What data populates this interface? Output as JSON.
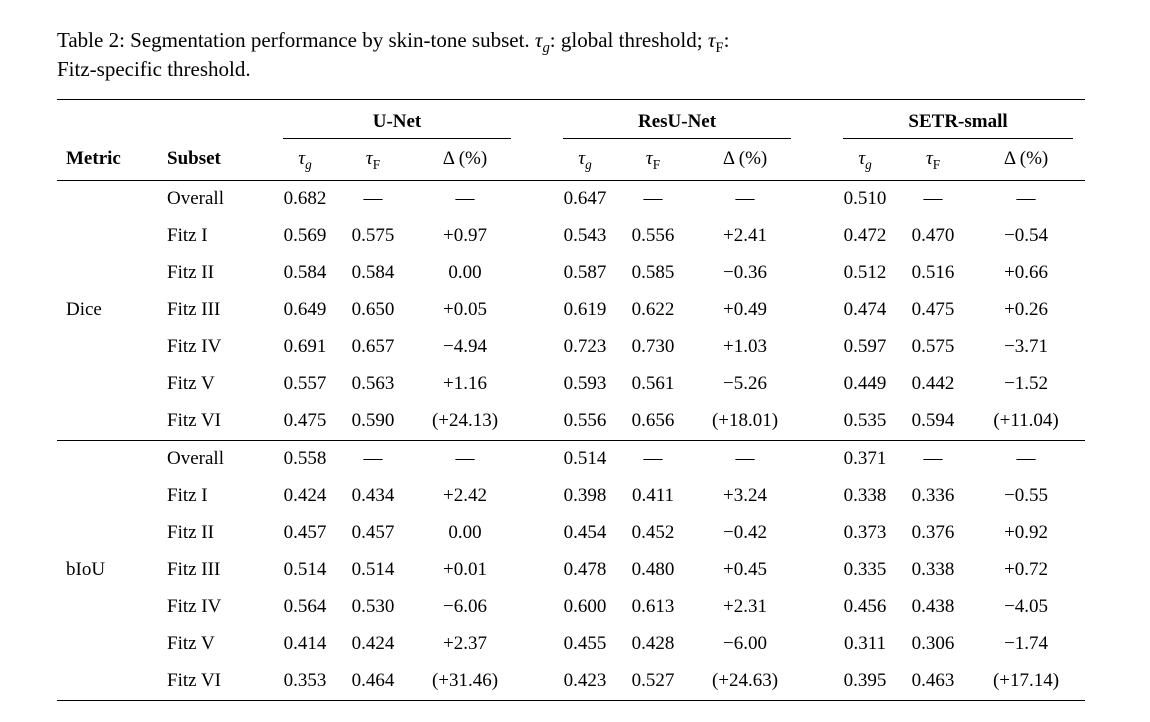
{
  "page": {
    "background": "#ffffff",
    "text_color": "#000000"
  },
  "caption": {
    "prefix": "Table 2: Segmentation performance by skin-tone subset. ",
    "tau1": {
      "base": "τ",
      "sub": "g"
    },
    "mid": ": global threshold; ",
    "tau2": {
      "base": "τ",
      "sub": "F"
    },
    "colon": ":",
    "line2": "Fitz-specific threshold."
  },
  "table": {
    "corner": {
      "metric": "Metric",
      "subset": "Subset"
    },
    "groups": [
      "U-Net",
      "ResU-Net",
      "SETR-small"
    ],
    "subheaders": {
      "tau_g": {
        "base": "τ",
        "sub": "g"
      },
      "tau_F": {
        "base": "τ",
        "sub": "F"
      },
      "delta": "Δ (%)"
    },
    "sections": [
      {
        "metric": "Dice",
        "rows": [
          {
            "subset": "Overall",
            "cells": [
              "0.682",
              "—",
              "—",
              "0.647",
              "—",
              "—",
              "0.510",
              "—",
              "—"
            ]
          },
          {
            "subset": "Fitz I",
            "cells": [
              "0.569",
              "0.575",
              "+0.97",
              "0.543",
              "0.556",
              "+2.41",
              "0.472",
              "0.470",
              "−0.54"
            ]
          },
          {
            "subset": "Fitz II",
            "cells": [
              "0.584",
              "0.584",
              "0.00",
              "0.587",
              "0.585",
              "−0.36",
              "0.512",
              "0.516",
              "+0.66"
            ]
          },
          {
            "subset": "Fitz III",
            "cells": [
              "0.649",
              "0.650",
              "+0.05",
              "0.619",
              "0.622",
              "+0.49",
              "0.474",
              "0.475",
              "+0.26"
            ]
          },
          {
            "subset": "Fitz IV",
            "cells": [
              "0.691",
              "0.657",
              "−4.94",
              "0.723",
              "0.730",
              "+1.03",
              "0.597",
              "0.575",
              "−3.71"
            ]
          },
          {
            "subset": "Fitz V",
            "cells": [
              "0.557",
              "0.563",
              "+1.16",
              "0.593",
              "0.561",
              "−5.26",
              "0.449",
              "0.442",
              "−1.52"
            ]
          },
          {
            "subset": "Fitz VI",
            "cells": [
              "0.475",
              "0.590",
              "(+24.13)",
              "0.556",
              "0.656",
              "(+18.01)",
              "0.535",
              "0.594",
              "(+11.04)"
            ]
          }
        ]
      },
      {
        "metric": "bIoU",
        "rows": [
          {
            "subset": "Overall",
            "cells": [
              "0.558",
              "—",
              "—",
              "0.514",
              "—",
              "—",
              "0.371",
              "—",
              "—"
            ]
          },
          {
            "subset": "Fitz I",
            "cells": [
              "0.424",
              "0.434",
              "+2.42",
              "0.398",
              "0.411",
              "+3.24",
              "0.338",
              "0.336",
              "−0.55"
            ]
          },
          {
            "subset": "Fitz II",
            "cells": [
              "0.457",
              "0.457",
              "0.00",
              "0.454",
              "0.452",
              "−0.42",
              "0.373",
              "0.376",
              "+0.92"
            ]
          },
          {
            "subset": "Fitz III",
            "cells": [
              "0.514",
              "0.514",
              "+0.01",
              "0.478",
              "0.480",
              "+0.45",
              "0.335",
              "0.338",
              "+0.72"
            ]
          },
          {
            "subset": "Fitz IV",
            "cells": [
              "0.564",
              "0.530",
              "−6.06",
              "0.600",
              "0.613",
              "+2.31",
              "0.456",
              "0.438",
              "−4.05"
            ]
          },
          {
            "subset": "Fitz V",
            "cells": [
              "0.414",
              "0.424",
              "+2.37",
              "0.455",
              "0.428",
              "−6.00",
              "0.311",
              "0.306",
              "−1.74"
            ]
          },
          {
            "subset": "Fitz VI",
            "cells": [
              "0.353",
              "0.464",
              "(+31.46)",
              "0.423",
              "0.527",
              "(+24.63)",
              "0.395",
              "0.463",
              "(+17.14)"
            ]
          }
        ]
      }
    ]
  }
}
